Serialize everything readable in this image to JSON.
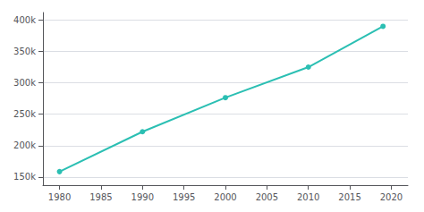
{
  "chart_data": {
    "type": "line",
    "x": [
      1980,
      1990,
      2000,
      2010,
      2019
    ],
    "values": [
      158588,
      222103,
      276393,
      325078,
      390000
    ],
    "color": "#2bbfb3",
    "marker": "circle",
    "xlim": [
      1978,
      2022
    ],
    "xticks": [
      1980,
      1985,
      1990,
      1995,
      2000,
      2005,
      2010,
      2015,
      2020
    ],
    "ylim": [
      137000,
      412000
    ],
    "yticks": [
      {
        "value": 150000,
        "label": "150k"
      },
      {
        "value": 200000,
        "label": "200k"
      },
      {
        "value": 250000,
        "label": "250k"
      },
      {
        "value": 300000,
        "label": "300k"
      },
      {
        "value": 350000,
        "label": "350k"
      },
      {
        "value": 400000,
        "label": "400k"
      }
    ],
    "grid": true
  }
}
